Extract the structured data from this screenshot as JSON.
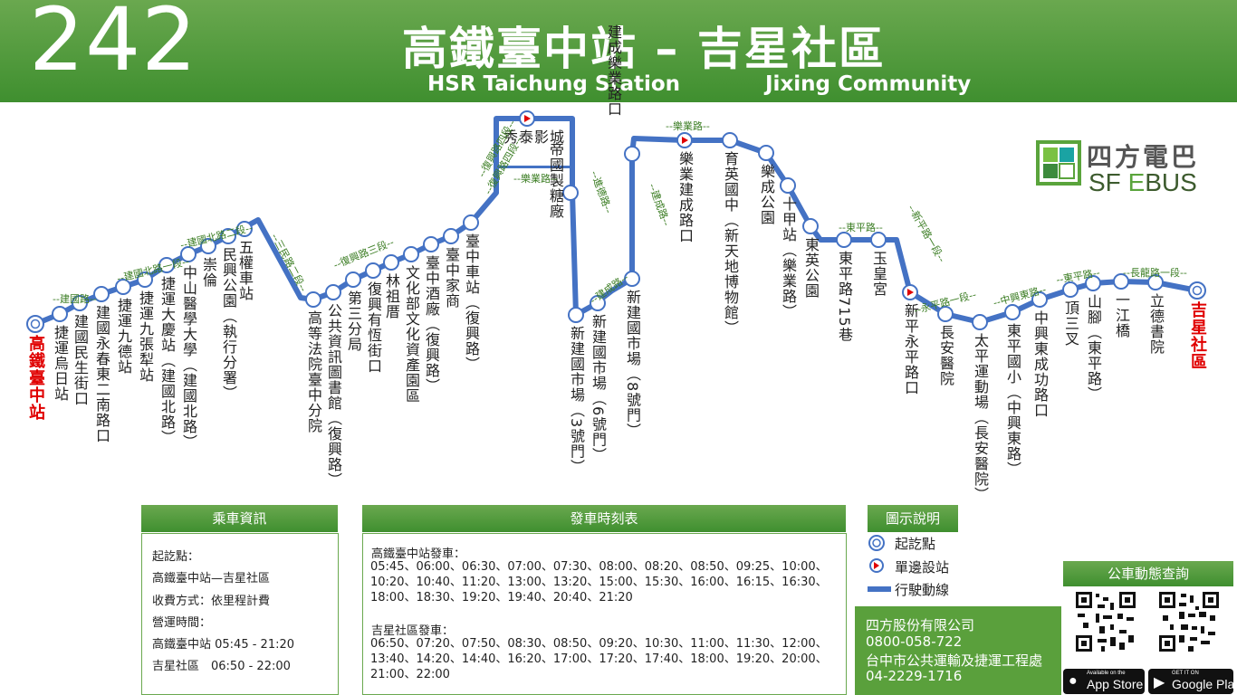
{
  "header": {
    "route_number": "242",
    "title_zh": "高鐵臺中站 – 吉星社區",
    "title_en_origin": "HSR Taichung Station",
    "title_en_destination": "Jixing Community"
  },
  "logo": {
    "name_zh": "四方電巴",
    "name_en_a": "SF ",
    "name_en_b": "E",
    "name_en_c": "BUS"
  },
  "stops": [
    "高鐵臺中站",
    "捷運烏日站",
    "建國民生街口",
    "建國永春東二南路口",
    "捷運九德站",
    "捷運九張犁站",
    "捷運大慶站（建國北路）",
    "中山醫學大學（建國北路）",
    "崇倫",
    "民興公園（執行分署）",
    "五權車站",
    "高等法院臺中分院",
    "公共資訊圖書館（復興路）",
    "第三分局",
    "復興有恆街口",
    "林祖厝",
    "文化部文化資產園區",
    "臺中酒廠（復興路）",
    "臺中家商",
    "臺中車站（復興路）",
    "秀泰影城",
    "帝國製糖廠",
    "新建國市場（3號門）",
    "新建國市場（6號門）",
    "新建國市場（8號門）",
    "建成樂業路口",
    "樂業建成路口",
    "育英國中（新天地博物館）",
    "樂成公園",
    "十甲站（樂業路）",
    "東英公園",
    "東平路715巷",
    "玉皇宮",
    "新平永平路口",
    "長安醫院",
    "太平運動場（長安醫院）",
    "東平國小（中興東路）",
    "中興東成功路口",
    "頂三叉",
    "山腳（東平路）",
    "一江橋",
    "立德書院",
    "吉星社區"
  ],
  "roads": [
    "建國路",
    "建國北路一段",
    "建國北路二段",
    "三民路二段",
    "復興路四段",
    "復興路三段",
    "復興路四段",
    "樂業路",
    "進德路",
    "建成路",
    "建成路",
    "樂業路",
    "東平路",
    "新平路一段",
    "永平路一段",
    "中興東路",
    "東平路",
    "長龍路一段"
  ],
  "info": {
    "title": "乘車資訊",
    "lines": [
      "起訖點：",
      "高鐵臺中站—吉星社區",
      "收費方式：依里程計費",
      "營運時間：",
      "高鐵臺中站 05:45 - 21:20",
      "吉星社區　06:50 - 22:00"
    ]
  },
  "timetable": {
    "title": "發車時刻表",
    "origin_label": "高鐵臺中站發車：",
    "origin_times": "05:45、06:00、06:30、07:00、07:30、08:00、08:20、08:50、09:25、10:00、10:20、10:40、11:20、13:00、13:20、15:00、15:30、16:00、16:15、16:30、18:00、18:30、19:20、19:40、20:40、21:20",
    "dest_label": "吉星社區發車：",
    "dest_times": "06:50、07:20、07:50、08:30、08:50、09:20、10:30、11:00、11:30、12:00、13:40、14:20、14:40、16:20、17:00、17:20、17:40、18:00、19:20、20:00、21:00、22:00"
  },
  "legend": {
    "title": "圖示說明",
    "items": [
      "起訖點",
      "單邊設站",
      "行駛動線"
    ]
  },
  "contact": {
    "company": "四方股份有限公司",
    "company_phone": "0800-058-722",
    "agency": "台中市公共運輸及捷運工程處",
    "agency_phone": "04-2229-1716"
  },
  "bus_query": {
    "title": "公車動態查詢",
    "app_store_small": "Available on the",
    "app_store": "App Store",
    "google_play_small": "GET IT ON",
    "google_play": "Google Play"
  },
  "colors": {
    "route": "#4472c4",
    "header": "#4e9a3c",
    "endpoint": "#e00000",
    "road": "#3b7d23"
  },
  "icons": [
    "direction-arrow-icon",
    "endpoint-circle-icon",
    "qr-code-icon",
    "apple-icon",
    "google-play-icon"
  ]
}
